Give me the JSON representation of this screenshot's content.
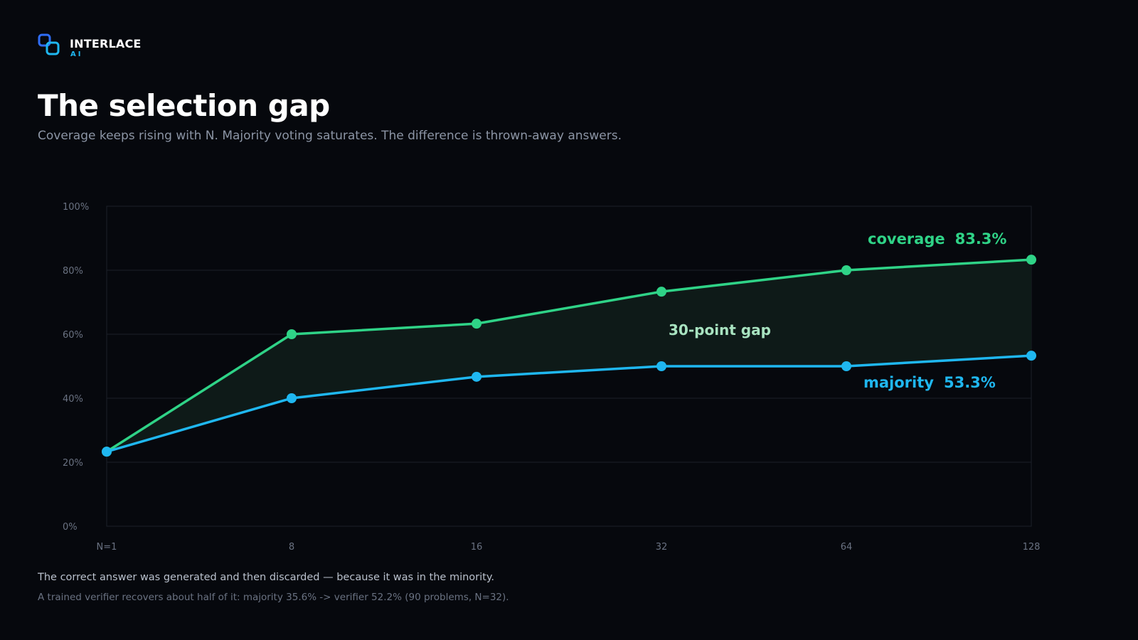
{
  "brand": {
    "name": "INTERLACE",
    "sub": "AI",
    "accent": "#1fb7f0"
  },
  "title": "The selection gap",
  "subtitle": "Coverage keeps rising with N. Majority voting saturates. The difference is thrown-away answers.",
  "chart_data": {
    "type": "line",
    "x": [
      "N=1",
      "8",
      "16",
      "32",
      "64",
      "128"
    ],
    "yticks": [
      "0%",
      "20%",
      "40%",
      "60%",
      "80%",
      "100%"
    ],
    "ylim": [
      0,
      100
    ],
    "grid": true,
    "series": [
      {
        "name": "coverage",
        "values": [
          23.3,
          60.0,
          63.3,
          73.3,
          80.0,
          83.3
        ],
        "color": "#2fd387",
        "end_label": "coverage",
        "end_value": "83.3%"
      },
      {
        "name": "majority",
        "values": [
          23.3,
          40.0,
          46.7,
          50.0,
          50.0,
          53.3
        ],
        "color": "#1fb7f0",
        "end_label": "majority",
        "end_value": "53.3%"
      }
    ],
    "gap_fill_color": "#0e1a18",
    "annotation": {
      "text": "30-point gap",
      "color": "#a8e3c0"
    }
  },
  "footer": {
    "main": "The correct answer was generated and then discarded — because it was in the minority.",
    "note": "A trained verifier recovers about half of it: majority 35.6% -> verifier 52.2% (90 problems, N=32)."
  }
}
